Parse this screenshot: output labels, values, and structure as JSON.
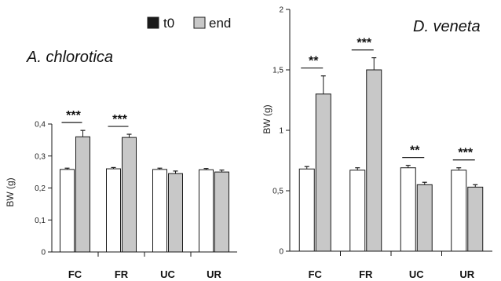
{
  "legend": [
    {
      "label": "t0",
      "color": "#1a1a1a"
    },
    {
      "label": "end",
      "color": "#c8c8c8"
    }
  ],
  "colors": {
    "t0_fill": "#ffffff",
    "end_fill": "#c8c8c8",
    "stroke": "#1a1a1a"
  },
  "chart_data": [
    {
      "type": "bar",
      "title": "A. chlorotica",
      "ylabel": "BW (g)",
      "ylim": [
        0,
        0.4
      ],
      "yticks": [
        0,
        0.1,
        0.2,
        0.3,
        0.4
      ],
      "ytick_labels": [
        "0",
        "0,1",
        "0,2",
        "0,3",
        "0,4"
      ],
      "categories": [
        "FC",
        "FR",
        "UC",
        "UR"
      ],
      "series": [
        {
          "name": "t0",
          "values": [
            0.258,
            0.26,
            0.258,
            0.257
          ],
          "errors": [
            0.004,
            0.004,
            0.004,
            0.004
          ]
        },
        {
          "name": "end",
          "values": [
            0.36,
            0.358,
            0.245,
            0.25
          ],
          "errors": [
            0.02,
            0.01,
            0.008,
            0.006
          ]
        }
      ],
      "significance": [
        "***",
        "***",
        "",
        ""
      ]
    },
    {
      "type": "bar",
      "title": "D. veneta",
      "ylabel": "BW (g)",
      "ylim": [
        0,
        2
      ],
      "yticks": [
        0,
        0.5,
        1,
        1.5,
        2
      ],
      "ytick_labels": [
        "0",
        "0,5",
        "1",
        "1,5",
        "2"
      ],
      "categories": [
        "FC",
        "FR",
        "UC",
        "UR"
      ],
      "series": [
        {
          "name": "t0",
          "values": [
            0.68,
            0.67,
            0.69,
            0.67
          ],
          "errors": [
            0.02,
            0.02,
            0.02,
            0.02
          ]
        },
        {
          "name": "end",
          "values": [
            1.3,
            1.5,
            0.55,
            0.53
          ],
          "errors": [
            0.15,
            0.1,
            0.02,
            0.02
          ]
        }
      ],
      "significance": [
        "**",
        "***",
        "**",
        "***"
      ]
    }
  ]
}
